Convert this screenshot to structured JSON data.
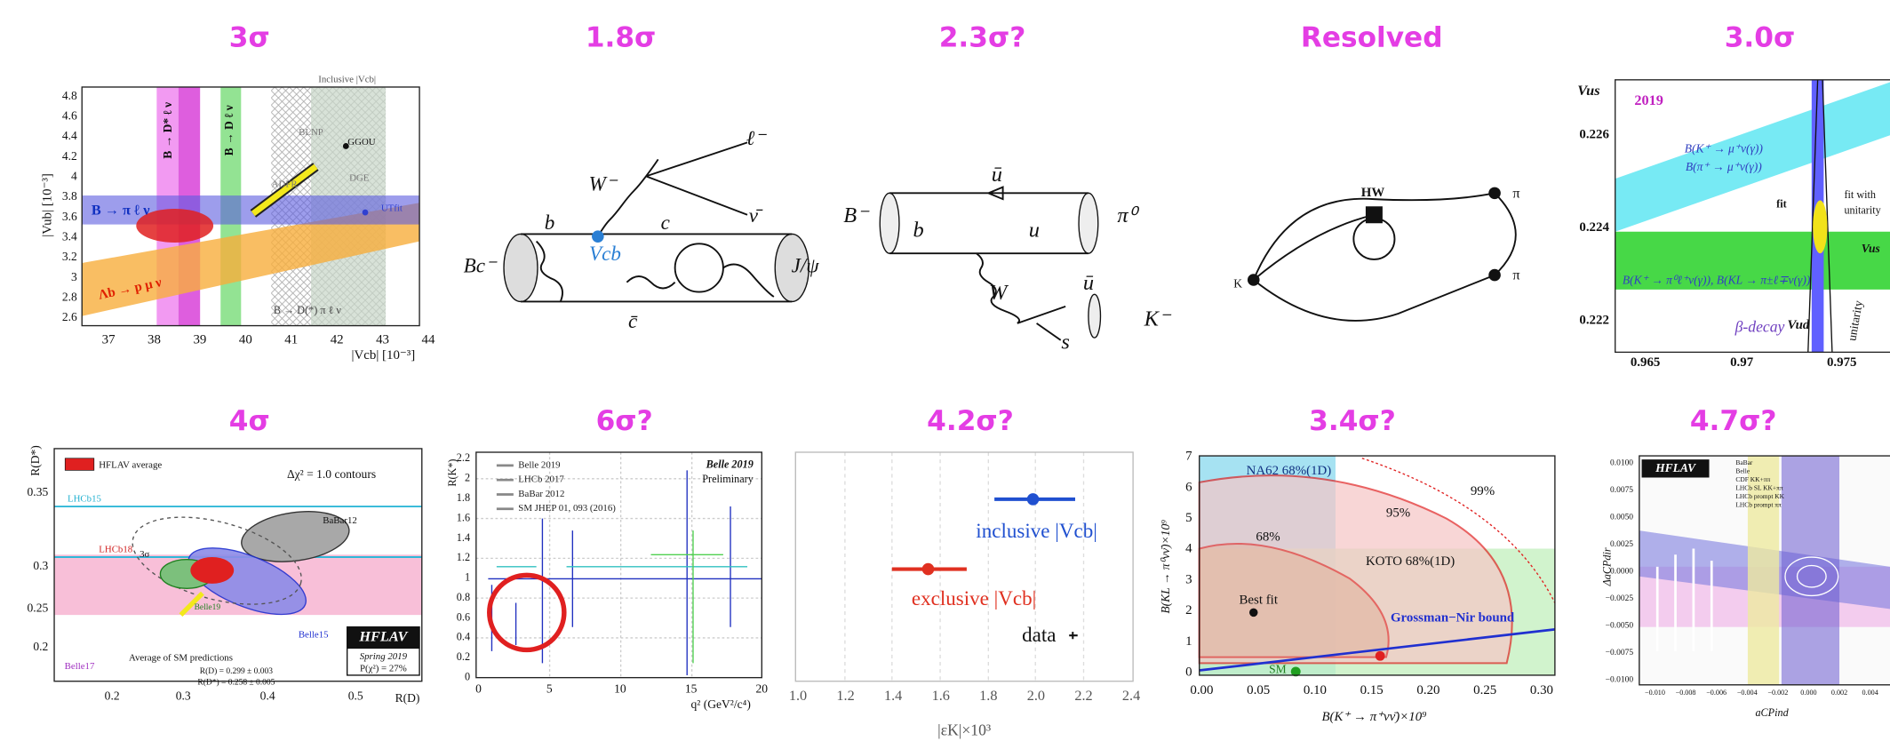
{
  "panels": [
    {
      "heading": "3σ",
      "inset_title": "Inclusive |Vcb|",
      "y_label": "|Vub| [10⁻³]",
      "x_label": "|Vcb| [10⁻³]",
      "y_ticks": [
        "4.8",
        "4.6",
        "4.4",
        "4.2",
        "4",
        "3.8",
        "3.6",
        "3.4",
        "3.2",
        "3",
        "2.8",
        "2.6"
      ],
      "x_ticks": [
        "37",
        "38",
        "39",
        "40",
        "41",
        "42",
        "43",
        "44"
      ],
      "labels": [
        "B → D* ℓ ν",
        "B → D ℓ ν",
        "B → π ℓ ν",
        "Λb → p μ ν",
        "B → D(*) π ℓ ν",
        "BLNP",
        "GGOU",
        "ADFR",
        "DGE",
        "UTfit"
      ]
    },
    {
      "heading": "1.8σ",
      "labels": [
        "ℓ⁻",
        "ν̄",
        "W⁻",
        "b",
        "c",
        "Vcb",
        "Bc⁻",
        "c̄",
        "J/ψ"
      ]
    },
    {
      "heading": "2.3σ?",
      "labels": [
        "B⁻",
        "ū",
        "b",
        "u",
        "π⁰",
        "W",
        "ū",
        "s",
        "K⁻"
      ]
    },
    {
      "heading": "Resolved",
      "labels": [
        "K",
        "HW",
        "π",
        "π"
      ]
    },
    {
      "heading": "3.0σ",
      "y_ticks": [
        "0.226",
        "0.224",
        "0.222"
      ],
      "x_ticks": [
        "0.965",
        "0.97",
        "0.975"
      ],
      "labels": [
        "Vus",
        "2019",
        "B(K⁺ → μ⁺ν(γ))",
        "B(π⁺ → μ⁺ν(γ))",
        "fit with",
        "unitarity",
        "fit",
        "Vus",
        "B(K⁺ → π⁰ℓ⁺ν(γ)), B(KL → π±ℓ∓ν(γ))",
        "β-decay",
        "Vud",
        "unitarity"
      ]
    },
    {
      "heading": "4σ",
      "y_label": "R(D*)",
      "x_label": "R(D)",
      "y_ticks": [
        "0.35",
        "0.3",
        "0.25",
        "0.2"
      ],
      "x_ticks": [
        "0.2",
        "0.3",
        "0.4",
        "0.5"
      ],
      "labels": [
        "LHCb15",
        "LHCb18",
        "BaBar12",
        "Belle15",
        "Belle19",
        "Belle17",
        "3σ",
        "HFLAV average",
        "Δχ² = 1.0 contours",
        "HFLAV",
        "Spring 2019",
        "P(χ²) = 27%",
        "Average of SM predictions",
        "R(D) = 0.299 ± 0.003",
        "R(D*) = 0.258 ± 0.005"
      ]
    },
    {
      "heading": "6σ?",
      "y_label": "R(K*)",
      "x_label": "q² (GeV²/c⁴)",
      "y_ticks": [
        "0",
        "0.2",
        "0.4",
        "0.6",
        "0.8",
        "1",
        "1.2",
        "1.4",
        "1.6",
        "1.8",
        "2",
        "2.2"
      ],
      "x_ticks": [
        "0",
        "5",
        "10",
        "15",
        "20"
      ],
      "legend": [
        "Belle 2019",
        "LHCb 2017",
        "BaBar 2012",
        "SM JHEP 01, 093 (2016)"
      ],
      "labels": [
        "Belle 2019",
        "Preliminary"
      ]
    },
    {
      "heading": "4.2σ?",
      "x_label": "|εK|×10³",
      "x_ticks": [
        "1.0",
        "1.2",
        "1.4",
        "1.6",
        "1.8",
        "2.0",
        "2.2",
        "2.4"
      ],
      "labels": [
        "inclusive |Vcb|",
        "exclusive |Vcb|",
        "data"
      ]
    },
    {
      "heading": "3.4σ?",
      "y_label": "B(KL → π⁰νν̄)×10⁹",
      "x_label": "B(K⁺ → π⁺νν̄)×10⁹",
      "y_ticks": [
        "0",
        "1",
        "2",
        "3",
        "4",
        "5",
        "6",
        "7"
      ],
      "x_ticks": [
        "0.00",
        "0.05",
        "0.10",
        "0.15",
        "0.20",
        "0.25",
        "0.30"
      ],
      "labels": [
        "NA62 68%(1D)",
        "99%",
        "95%",
        "68%",
        "KOTO 68%(1D)",
        "Best fit",
        "Grossman−Nir bound",
        "SM"
      ]
    },
    {
      "heading": "4.7σ?",
      "y_label": "ΔaCPdir",
      "x_label": "aCPind",
      "y_ticks": [
        "0.0100",
        "0.0075",
        "0.0050",
        "0.0025",
        "0.0000",
        "−0.0025",
        "−0.0050",
        "−0.0075",
        "−0.0100"
      ],
      "x_ticks": [
        "−0.010",
        "−0.008",
        "−0.006",
        "−0.004",
        "−0.002",
        "0.000",
        "0.002",
        "0.004"
      ],
      "labels": [
        "HFLAV",
        "BaBar",
        "Belle",
        "CDF KK+ππ",
        "LHCb SL KK+ππ",
        "LHCb prompt KK",
        "LHCb prompt ππ"
      ]
    }
  ]
}
